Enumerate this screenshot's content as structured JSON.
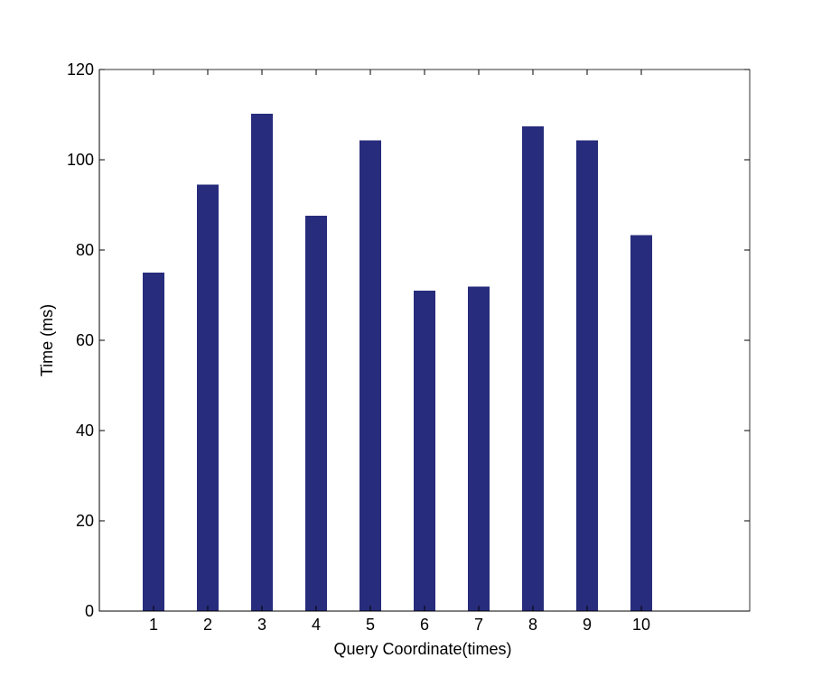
{
  "chart_data": {
    "type": "bar",
    "title": "",
    "xlabel": "Query Coordinate(times)",
    "ylabel": "Time (ms)",
    "categories": [
      "1",
      "2",
      "3",
      "4",
      "5",
      "6",
      "7",
      "8",
      "9",
      "10"
    ],
    "values": [
      75,
      94.5,
      110.2,
      87.6,
      104.3,
      71,
      71.9,
      107.4,
      104.3,
      83.3
    ],
    "ylim": [
      0,
      120
    ],
    "xlim": [
      0,
      12
    ],
    "yticks": [
      0,
      20,
      40,
      60,
      80,
      100,
      120
    ],
    "bar_color": "#282c7c",
    "grid": false,
    "legend": "none"
  }
}
